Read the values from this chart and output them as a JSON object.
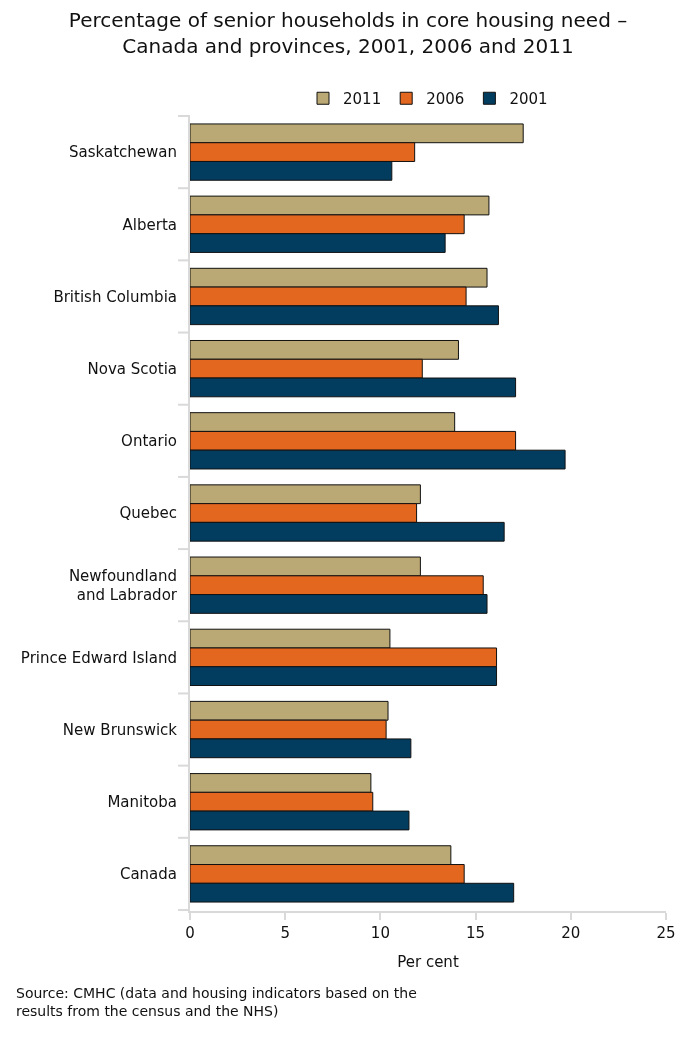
{
  "chart_data": {
    "type": "bar",
    "orientation": "horizontal",
    "title": "Percentage of senior households in core housing need – Canada and provinces, 2001, 2006 and 2011",
    "xlabel": "Per cent",
    "categories": [
      "Saskatchewan",
      "Alberta",
      "British Columbia",
      "Nova Scotia",
      "Ontario",
      "Quebec",
      "Newfoundland and Labrador",
      "Prince Edward Island",
      "New Brunswick",
      "Manitoba",
      "Canada"
    ],
    "series": [
      {
        "name": "2011",
        "color": "#bba975",
        "values": [
          17.5,
          15.7,
          15.6,
          14.1,
          13.9,
          12.1,
          12.1,
          10.5,
          10.4,
          9.5,
          13.7
        ]
      },
      {
        "name": "2006",
        "color": "#e3671f",
        "values": [
          11.8,
          14.4,
          14.5,
          12.2,
          17.1,
          11.9,
          15.4,
          16.1,
          10.3,
          9.6,
          14.4
        ]
      },
      {
        "name": "2001",
        "color": "#023d60",
        "values": [
          10.6,
          13.4,
          16.2,
          17.1,
          19.7,
          16.5,
          15.6,
          16.1,
          11.6,
          11.5,
          17.0
        ]
      }
    ],
    "xlim": [
      0,
      25
    ],
    "xticks": [
      0,
      5,
      10,
      15,
      20,
      25
    ],
    "legend": "top",
    "annotations": [
      "Source: CMHC (data and housing indicators based on the results from the census and the NHS)"
    ]
  }
}
